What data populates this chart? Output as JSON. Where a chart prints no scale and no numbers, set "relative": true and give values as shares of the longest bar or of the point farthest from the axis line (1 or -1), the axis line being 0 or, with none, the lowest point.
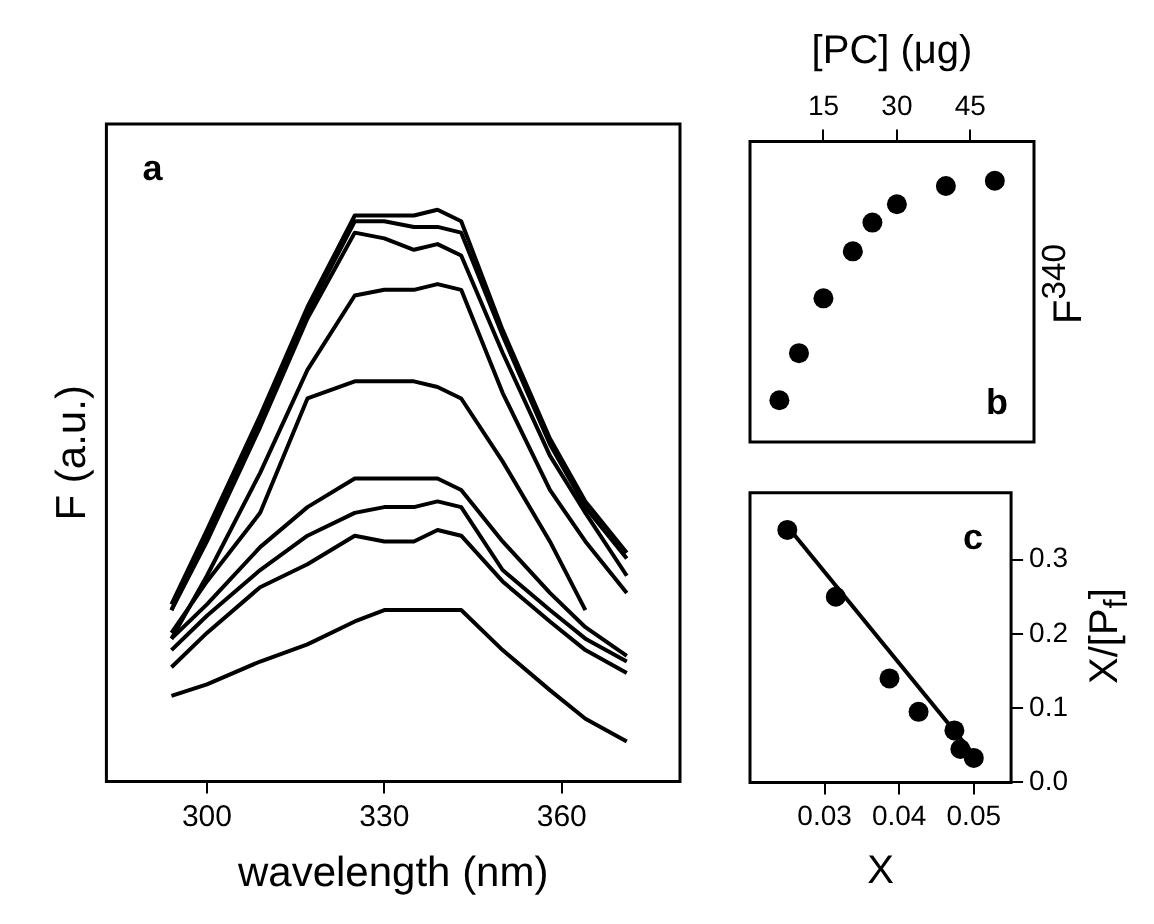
{
  "chart_data": [
    {
      "type": "line",
      "xlabel": "wavelength (nm)",
      "ylabel": "F (a.u.)",
      "annotations": [
        "a"
      ],
      "relative": true,
      "marker": "none",
      "xlim": [
        283,
        380
      ],
      "xticks": [
        300,
        330,
        360
      ],
      "x": [
        294,
        300,
        309,
        317,
        325,
        330,
        335,
        339,
        343,
        350,
        358,
        364,
        371
      ],
      "series": [
        {
          "color": "#000000",
          "values": [
            0.31,
            0.44,
            0.64,
            0.83,
            0.99,
            0.99,
            0.99,
            1.0,
            0.98,
            0.79,
            0.6,
            0.49,
            0.4
          ]
        },
        {
          "color": "#000000",
          "values": [
            0.3,
            0.43,
            0.63,
            0.82,
            0.98,
            0.98,
            0.97,
            0.97,
            0.96,
            0.78,
            0.59,
            0.48,
            0.39
          ]
        },
        {
          "color": "#000000",
          "values": [
            0.3,
            0.42,
            0.62,
            0.81,
            0.96,
            0.95,
            0.93,
            0.94,
            0.92,
            0.75,
            0.57,
            0.47,
            0.36
          ]
        },
        {
          "color": "#000000",
          "values": [
            0.25,
            0.36,
            0.54,
            0.72,
            0.85,
            0.86,
            0.86,
            0.87,
            0.86,
            0.68,
            0.51,
            0.42,
            0.33
          ]
        },
        {
          "color": "#000000",
          "values": [
            0.26,
            0.35,
            0.47,
            0.67,
            0.7,
            0.7,
            0.7,
            0.69,
            0.67,
            0.56,
            0.42,
            0.3,
            null
          ]
        },
        {
          "color": "#000000",
          "values": [
            0.25,
            0.31,
            0.41,
            0.48,
            0.53,
            0.53,
            0.53,
            0.53,
            0.51,
            0.42,
            0.33,
            0.27,
            0.22
          ]
        },
        {
          "color": "#000000",
          "values": [
            0.23,
            0.29,
            0.37,
            0.43,
            0.47,
            0.48,
            0.48,
            0.49,
            0.48,
            0.37,
            0.3,
            0.25,
            0.21
          ]
        },
        {
          "color": "#000000",
          "values": [
            0.2,
            0.26,
            0.34,
            0.38,
            0.43,
            0.42,
            0.42,
            0.44,
            0.43,
            0.35,
            0.28,
            0.23,
            0.19
          ]
        },
        {
          "color": "#000000",
          "values": [
            0.15,
            0.17,
            0.21,
            0.24,
            0.28,
            0.3,
            0.3,
            0.3,
            0.3,
            0.23,
            0.16,
            0.11,
            0.07
          ]
        }
      ]
    },
    {
      "type": "scatter",
      "x2label": "[PC] (μg)",
      "y2label": "F$^{340}$",
      "annotations": [
        "b"
      ],
      "relative": true,
      "marker": "circle",
      "xlim": [
        0,
        58
      ],
      "xticks": [
        15,
        30,
        45
      ],
      "x": [
        6,
        10,
        15,
        21,
        25,
        30,
        40,
        50
      ],
      "series": [
        {
          "color": "#000000",
          "axis": "y2",
          "values": [
            0.16,
            0.34,
            0.55,
            0.73,
            0.84,
            0.91,
            0.98,
            1.0
          ]
        }
      ]
    },
    {
      "type": "scatter",
      "xlabel": "X",
      "y2label": "X/[P$_{f}$]",
      "annotations": [
        "c"
      ],
      "marker": "circle",
      "xlim": [
        0.02,
        0.055
      ],
      "xticks": [
        0.03,
        0.04,
        0.05
      ],
      "y2lim": [
        0,
        0.39
      ],
      "y2ticks": [
        {
          "value": 0,
          "label": "0.0"
        },
        0.1,
        0.2,
        0.3
      ],
      "x": [
        0.025,
        0.0315,
        0.0387,
        0.0426,
        0.0474,
        0.0482,
        0.05
      ],
      "series": [
        {
          "color": "#000000",
          "axis": "y2",
          "values": [
            0.34,
            0.25,
            0.14,
            0.095,
            0.07,
            0.045,
            0.033
          ]
        },
        {
          "type": "line",
          "marker": "none",
          "color": "#000000",
          "axis": "y2",
          "x": [
            0.025,
            0.051
          ],
          "values": [
            0.345,
            0.025
          ]
        }
      ]
    }
  ]
}
